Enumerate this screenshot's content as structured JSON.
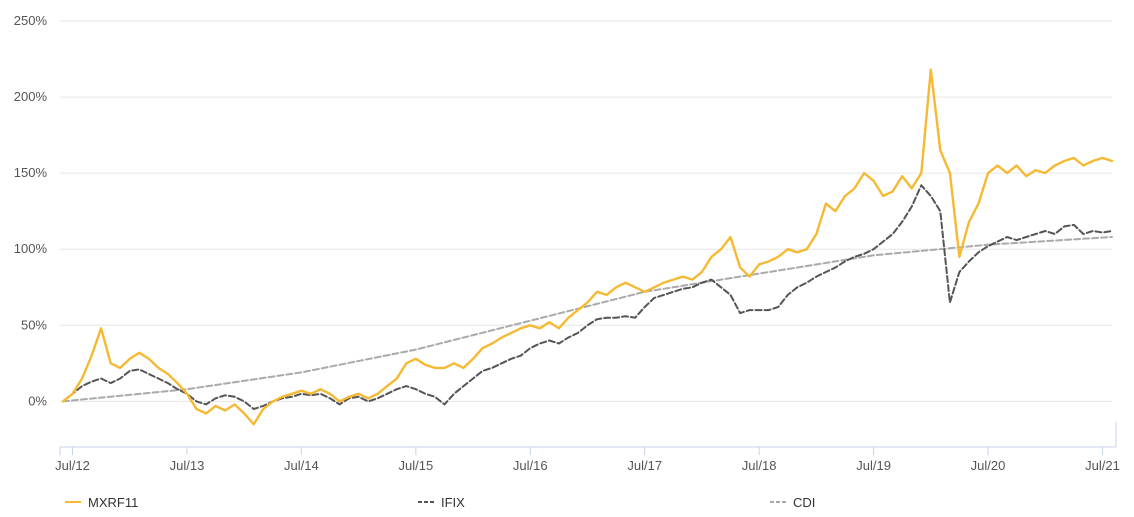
{
  "chart_data": {
    "type": "line",
    "title": "",
    "xlabel": "",
    "ylabel": "",
    "ylim": [
      -30,
      250
    ],
    "xlim": [
      "2012-06",
      "2021-08"
    ],
    "grid": true,
    "legend_position": "bottom",
    "y_ticks": [
      {
        "value": 250,
        "label": "250%"
      },
      {
        "value": 200,
        "label": "200%"
      },
      {
        "value": 150,
        "label": "150%"
      },
      {
        "value": 100,
        "label": "100%"
      },
      {
        "value": 50,
        "label": "50%"
      },
      {
        "value": 0,
        "label": "0%"
      }
    ],
    "x_ticks": [
      {
        "value": "2012-07",
        "label": "Jul/12"
      },
      {
        "value": "2013-07",
        "label": "Jul/13"
      },
      {
        "value": "2014-07",
        "label": "Jul/14"
      },
      {
        "value": "2015-07",
        "label": "Jul/15"
      },
      {
        "value": "2016-07",
        "label": "Jul/16"
      },
      {
        "value": "2017-07",
        "label": "Jul/17"
      },
      {
        "value": "2018-07",
        "label": "Jul/18"
      },
      {
        "value": "2019-07",
        "label": "Jul/19"
      },
      {
        "value": "2020-07",
        "label": "Jul/20"
      },
      {
        "value": "2021-07",
        "label": "Jul/21"
      }
    ],
    "series": [
      {
        "name": "MXRF11",
        "color": "#f5b933",
        "dash": "solid",
        "points": [
          [
            "2012-06",
            0
          ],
          [
            "2012-07",
            5
          ],
          [
            "2012-08",
            15
          ],
          [
            "2012-09",
            30
          ],
          [
            "2012-10",
            48
          ],
          [
            "2012-11",
            25
          ],
          [
            "2012-12",
            22
          ],
          [
            "2013-01",
            28
          ],
          [
            "2013-02",
            32
          ],
          [
            "2013-03",
            28
          ],
          [
            "2013-04",
            22
          ],
          [
            "2013-05",
            18
          ],
          [
            "2013-06",
            12
          ],
          [
            "2013-07",
            5
          ],
          [
            "2013-08",
            -5
          ],
          [
            "2013-09",
            -8
          ],
          [
            "2013-10",
            -3
          ],
          [
            "2013-11",
            -6
          ],
          [
            "2013-12",
            -2
          ],
          [
            "2014-01",
            -8
          ],
          [
            "2014-02",
            -15
          ],
          [
            "2014-03",
            -5
          ],
          [
            "2014-04",
            0
          ],
          [
            "2014-05",
            3
          ],
          [
            "2014-06",
            5
          ],
          [
            "2014-07",
            7
          ],
          [
            "2014-08",
            5
          ],
          [
            "2014-09",
            8
          ],
          [
            "2014-10",
            5
          ],
          [
            "2014-11",
            0
          ],
          [
            "2014-12",
            3
          ],
          [
            "2015-01",
            5
          ],
          [
            "2015-02",
            2
          ],
          [
            "2015-03",
            5
          ],
          [
            "2015-04",
            10
          ],
          [
            "2015-05",
            15
          ],
          [
            "2015-06",
            25
          ],
          [
            "2015-07",
            28
          ],
          [
            "2015-08",
            24
          ],
          [
            "2015-09",
            22
          ],
          [
            "2015-10",
            22
          ],
          [
            "2015-11",
            25
          ],
          [
            "2015-12",
            22
          ],
          [
            "2016-01",
            28
          ],
          [
            "2016-02",
            35
          ],
          [
            "2016-03",
            38
          ],
          [
            "2016-04",
            42
          ],
          [
            "2016-05",
            45
          ],
          [
            "2016-06",
            48
          ],
          [
            "2016-07",
            50
          ],
          [
            "2016-08",
            48
          ],
          [
            "2016-09",
            52
          ],
          [
            "2016-10",
            48
          ],
          [
            "2016-11",
            55
          ],
          [
            "2016-12",
            60
          ],
          [
            "2017-01",
            65
          ],
          [
            "2017-02",
            72
          ],
          [
            "2017-03",
            70
          ],
          [
            "2017-04",
            75
          ],
          [
            "2017-05",
            78
          ],
          [
            "2017-06",
            75
          ],
          [
            "2017-07",
            72
          ],
          [
            "2017-08",
            75
          ],
          [
            "2017-09",
            78
          ],
          [
            "2017-10",
            80
          ],
          [
            "2017-11",
            82
          ],
          [
            "2017-12",
            80
          ],
          [
            "2018-01",
            85
          ],
          [
            "2018-02",
            95
          ],
          [
            "2018-03",
            100
          ],
          [
            "2018-04",
            108
          ],
          [
            "2018-05",
            88
          ],
          [
            "2018-06",
            82
          ],
          [
            "2018-07",
            90
          ],
          [
            "2018-08",
            92
          ],
          [
            "2018-09",
            95
          ],
          [
            "2018-10",
            100
          ],
          [
            "2018-11",
            98
          ],
          [
            "2018-12",
            100
          ],
          [
            "2019-01",
            110
          ],
          [
            "2019-02",
            130
          ],
          [
            "2019-03",
            125
          ],
          [
            "2019-04",
            135
          ],
          [
            "2019-05",
            140
          ],
          [
            "2019-06",
            150
          ],
          [
            "2019-07",
            145
          ],
          [
            "2019-08",
            135
          ],
          [
            "2019-09",
            138
          ],
          [
            "2019-10",
            148
          ],
          [
            "2019-11",
            140
          ],
          [
            "2019-12",
            150
          ],
          [
            "2020-01",
            218
          ],
          [
            "2020-02",
            165
          ],
          [
            "2020-03",
            150
          ],
          [
            "2020-04",
            95
          ],
          [
            "2020-05",
            118
          ],
          [
            "2020-06",
            130
          ],
          [
            "2020-07",
            150
          ],
          [
            "2020-08",
            155
          ],
          [
            "2020-09",
            150
          ],
          [
            "2020-10",
            155
          ],
          [
            "2020-11",
            148
          ],
          [
            "2020-12",
            152
          ],
          [
            "2021-01",
            150
          ],
          [
            "2021-02",
            155
          ],
          [
            "2021-03",
            158
          ],
          [
            "2021-04",
            160
          ],
          [
            "2021-05",
            155
          ],
          [
            "2021-06",
            158
          ],
          [
            "2021-07",
            160
          ],
          [
            "2021-08",
            158
          ]
        ]
      },
      {
        "name": "IFIX",
        "color": "#555555",
        "dash": "dashed",
        "points": [
          [
            "2012-06",
            0
          ],
          [
            "2012-07",
            5
          ],
          [
            "2012-08",
            10
          ],
          [
            "2012-09",
            13
          ],
          [
            "2012-10",
            15
          ],
          [
            "2012-11",
            12
          ],
          [
            "2012-12",
            15
          ],
          [
            "2013-01",
            20
          ],
          [
            "2013-02",
            21
          ],
          [
            "2013-03",
            18
          ],
          [
            "2013-04",
            15
          ],
          [
            "2013-05",
            12
          ],
          [
            "2013-06",
            8
          ],
          [
            "2013-07",
            5
          ],
          [
            "2013-08",
            0
          ],
          [
            "2013-09",
            -2
          ],
          [
            "2013-10",
            2
          ],
          [
            "2013-11",
            4
          ],
          [
            "2013-12",
            3
          ],
          [
            "2014-01",
            0
          ],
          [
            "2014-02",
            -5
          ],
          [
            "2014-03",
            -3
          ],
          [
            "2014-04",
            0
          ],
          [
            "2014-05",
            2
          ],
          [
            "2014-06",
            3
          ],
          [
            "2014-07",
            5
          ],
          [
            "2014-08",
            4
          ],
          [
            "2014-09",
            5
          ],
          [
            "2014-10",
            2
          ],
          [
            "2014-11",
            -2
          ],
          [
            "2014-12",
            2
          ],
          [
            "2015-01",
            3
          ],
          [
            "2015-02",
            0
          ],
          [
            "2015-03",
            2
          ],
          [
            "2015-04",
            5
          ],
          [
            "2015-05",
            8
          ],
          [
            "2015-06",
            10
          ],
          [
            "2015-07",
            8
          ],
          [
            "2015-08",
            5
          ],
          [
            "2015-09",
            3
          ],
          [
            "2015-10",
            -2
          ],
          [
            "2015-11",
            5
          ],
          [
            "2015-12",
            10
          ],
          [
            "2016-01",
            15
          ],
          [
            "2016-02",
            20
          ],
          [
            "2016-03",
            22
          ],
          [
            "2016-04",
            25
          ],
          [
            "2016-05",
            28
          ],
          [
            "2016-06",
            30
          ],
          [
            "2016-07",
            35
          ],
          [
            "2016-08",
            38
          ],
          [
            "2016-09",
            40
          ],
          [
            "2016-10",
            38
          ],
          [
            "2016-11",
            42
          ],
          [
            "2016-12",
            45
          ],
          [
            "2017-01",
            50
          ],
          [
            "2017-02",
            54
          ],
          [
            "2017-03",
            55
          ],
          [
            "2017-04",
            55
          ],
          [
            "2017-05",
            56
          ],
          [
            "2017-06",
            55
          ],
          [
            "2017-07",
            62
          ],
          [
            "2017-08",
            68
          ],
          [
            "2017-09",
            70
          ],
          [
            "2017-10",
            72
          ],
          [
            "2017-11",
            74
          ],
          [
            "2017-12",
            75
          ],
          [
            "2018-01",
            78
          ],
          [
            "2018-02",
            80
          ],
          [
            "2018-03",
            75
          ],
          [
            "2018-04",
            70
          ],
          [
            "2018-05",
            58
          ],
          [
            "2018-06",
            60
          ],
          [
            "2018-07",
            60
          ],
          [
            "2018-08",
            60
          ],
          [
            "2018-09",
            62
          ],
          [
            "2018-10",
            70
          ],
          [
            "2018-11",
            75
          ],
          [
            "2018-12",
            78
          ],
          [
            "2019-01",
            82
          ],
          [
            "2019-02",
            85
          ],
          [
            "2019-03",
            88
          ],
          [
            "2019-04",
            92
          ],
          [
            "2019-05",
            95
          ],
          [
            "2019-06",
            97
          ],
          [
            "2019-07",
            100
          ],
          [
            "2019-08",
            105
          ],
          [
            "2019-09",
            110
          ],
          [
            "2019-10",
            118
          ],
          [
            "2019-11",
            128
          ],
          [
            "2019-12",
            142
          ],
          [
            "2020-01",
            135
          ],
          [
            "2020-02",
            125
          ],
          [
            "2020-03",
            65
          ],
          [
            "2020-04",
            85
          ],
          [
            "2020-05",
            92
          ],
          [
            "2020-06",
            98
          ],
          [
            "2020-07",
            102
          ],
          [
            "2020-08",
            105
          ],
          [
            "2020-09",
            108
          ],
          [
            "2020-10",
            106
          ],
          [
            "2020-11",
            108
          ],
          [
            "2020-12",
            110
          ],
          [
            "2021-01",
            112
          ],
          [
            "2021-02",
            110
          ],
          [
            "2021-03",
            115
          ],
          [
            "2021-04",
            116
          ],
          [
            "2021-05",
            110
          ],
          [
            "2021-06",
            112
          ],
          [
            "2021-07",
            111
          ],
          [
            "2021-08",
            112
          ]
        ]
      },
      {
        "name": "CDI",
        "color": "#aaaaaa",
        "dash": "dashed",
        "points": [
          [
            "2012-06",
            0
          ],
          [
            "2013-07",
            8
          ],
          [
            "2014-07",
            19
          ],
          [
            "2015-07",
            34
          ],
          [
            "2016-07",
            53
          ],
          [
            "2017-07",
            72
          ],
          [
            "2018-07",
            84
          ],
          [
            "2019-07",
            96
          ],
          [
            "2020-07",
            103
          ],
          [
            "2021-08",
            108
          ]
        ]
      }
    ]
  }
}
